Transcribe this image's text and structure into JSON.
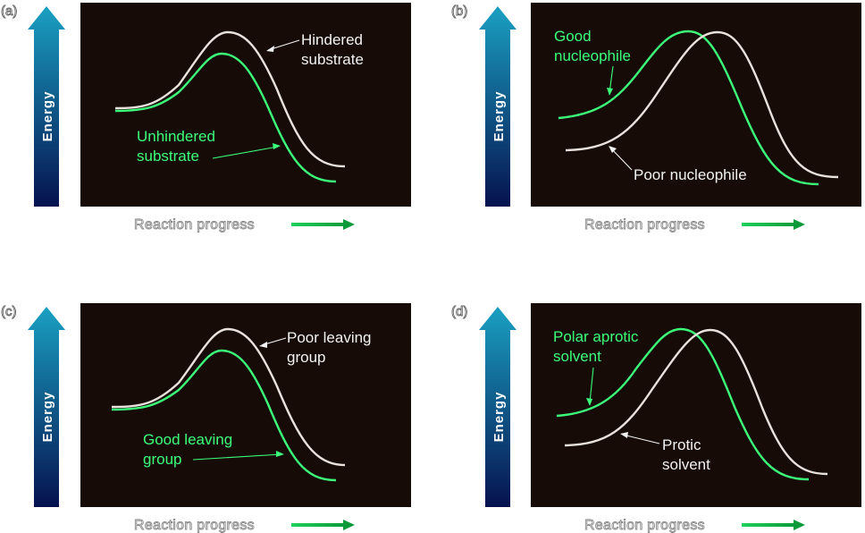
{
  "colors": {
    "plot_bg": "#160b07",
    "green_curve": "#3cff7a",
    "white_curve": "#e9e1dc",
    "arrow_top": "#1aa0c2",
    "arrow_bottom": "#06124f"
  },
  "panels": [
    {
      "letter": "(a)",
      "axis_label": "Energy",
      "x_label": "Reaction progress",
      "labels": [
        {
          "lines": [
            "Hindered",
            "substrate"
          ],
          "color": "white"
        },
        {
          "lines": [
            "Unhindered",
            "substrate"
          ],
          "color": "green"
        }
      ]
    },
    {
      "letter": "(b)",
      "axis_label": "Energy",
      "x_label": "Reaction progress",
      "labels": [
        {
          "lines": [
            "Good",
            "nucleophile"
          ],
          "color": "green"
        },
        {
          "lines": [
            "Poor nucleophile"
          ],
          "color": "white"
        }
      ]
    },
    {
      "letter": "(c)",
      "axis_label": "Energy",
      "x_label": "Reaction progress",
      "labels": [
        {
          "lines": [
            "Poor leaving",
            "group"
          ],
          "color": "white"
        },
        {
          "lines": [
            "Good leaving",
            "group"
          ],
          "color": "green"
        }
      ]
    },
    {
      "letter": "(d)",
      "axis_label": "Energy",
      "x_label": "Reaction progress",
      "labels": [
        {
          "lines": [
            "Polar aprotic",
            "solvent"
          ],
          "color": "green"
        },
        {
          "lines": [
            "Protic",
            "solvent"
          ],
          "color": "white"
        }
      ]
    }
  ]
}
